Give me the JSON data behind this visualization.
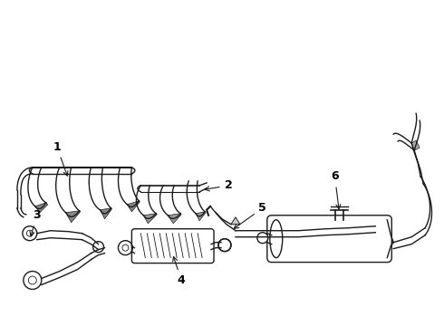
{
  "bg_color": "#ffffff",
  "line_color": "#1a1a1a",
  "line_width": 1.0,
  "fig_width": 4.9,
  "fig_height": 3.6,
  "dpi": 100,
  "font_size": 9
}
